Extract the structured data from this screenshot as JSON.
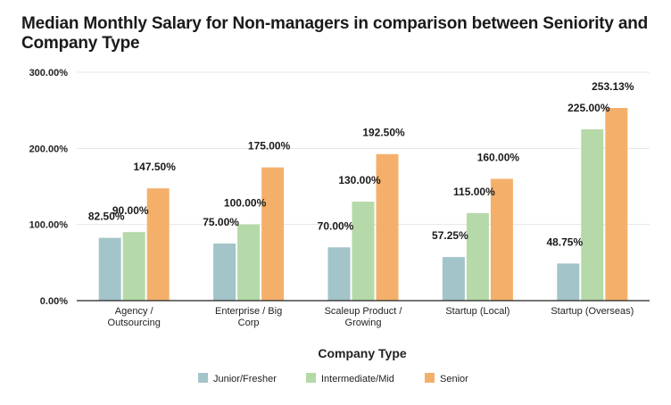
{
  "chart_data": {
    "type": "bar",
    "title": "Median Monthly Salary for Non-managers in comparison between Seniority and Company Type",
    "xlabel": "Company Type",
    "ylabel": "",
    "ylim": [
      0,
      300
    ],
    "yticks": [
      "0.00%",
      "100.00%",
      "200.00%",
      "300.00%"
    ],
    "ytick_values": [
      0,
      100,
      200,
      300
    ],
    "grid": true,
    "legend_position": "bottom",
    "categories": [
      [
        "Agency /",
        "Outsourcing"
      ],
      [
        "Enterprise / Big",
        "Corp"
      ],
      [
        "Scaleup Product /",
        "Growing"
      ],
      [
        "Startup (Local)"
      ],
      [
        "Startup (Overseas)"
      ]
    ],
    "series": [
      {
        "name": "Junior/Fresher",
        "color": "#a3c4c9",
        "values": [
          82.5,
          75.0,
          70.0,
          57.25,
          48.75
        ],
        "labels": [
          "82.50%",
          "75.00%",
          "70.00%",
          "57.25%",
          "48.75%"
        ]
      },
      {
        "name": "Intermediate/Mid",
        "color": "#b5d9a8",
        "values": [
          90.0,
          100.0,
          130.0,
          115.0,
          225.0
        ],
        "labels": [
          "90.00%",
          "100.00%",
          "130.00%",
          "115.00%",
          "225.00%"
        ]
      },
      {
        "name": "Senior",
        "color": "#f4b06b",
        "values": [
          147.5,
          175.0,
          192.5,
          160.0,
          253.13
        ],
        "labels": [
          "147.50%",
          "175.00%",
          "192.50%",
          "160.00%",
          "253.13%"
        ]
      }
    ]
  }
}
